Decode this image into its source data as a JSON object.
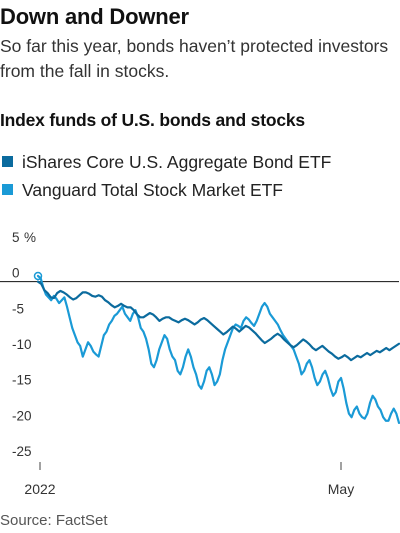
{
  "title": "Down and Downer",
  "subtitle": "So far this year, bonds haven’t protected investors from the fall in stocks.",
  "heading": "Index funds of U.S. bonds and stocks",
  "source": "Source: FactSet",
  "chart_data": {
    "type": "line",
    "title": "",
    "xlabel": "",
    "ylabel": "",
    "unit_label": "%",
    "x_tick_labels": [
      "2022",
      "May"
    ],
    "y_ticks": [
      5,
      0,
      -5,
      -10,
      -15,
      -20,
      -25
    ],
    "y_tick_labels": [
      "5",
      "0",
      "-5",
      "-10",
      "-15",
      "-20",
      "-25"
    ],
    "ylim": [
      -25,
      5
    ],
    "grid": false,
    "legend": "top-left",
    "colors": {
      "bond": "#0b6b9e",
      "stock": "#1a9ad6",
      "zero_line": "#111111"
    },
    "series": [
      {
        "name": "iShares Core U.S. Aggregate Bond ETF",
        "color": "#0b6b9e",
        "values": [
          0,
          -0.3,
          -1.2,
          -1.6,
          -2.2,
          -2.3,
          -1.6,
          -1.3,
          -1.5,
          -1.8,
          -2.2,
          -2.5,
          -2.3,
          -1.9,
          -1.5,
          -1.5,
          -1.7,
          -2.0,
          -2.1,
          -1.9,
          -2.1,
          -2.6,
          -2.9,
          -3.3,
          -3.6,
          -3.4,
          -3.1,
          -3.4,
          -3.6,
          -3.6,
          -4.0,
          -4.6,
          -5.0,
          -5.0,
          -4.7,
          -4.4,
          -4.6,
          -5.0,
          -5.5,
          -5.2,
          -5.0,
          -5.0,
          -5.3,
          -5.5,
          -5.7,
          -5.4,
          -5.2,
          -5.4,
          -5.7,
          -6.0,
          -5.7,
          -5.3,
          -5.1,
          -5.4,
          -5.8,
          -6.2,
          -6.6,
          -7.0,
          -7.4,
          -7.1,
          -6.7,
          -6.3,
          -6.6,
          -7.0,
          -6.6,
          -6.2,
          -6.4,
          -6.8,
          -7.2,
          -7.7,
          -8.2,
          -8.6,
          -8.3,
          -8.0,
          -7.6,
          -7.3,
          -7.6,
          -8.1,
          -8.5,
          -8.9,
          -9.2,
          -8.9,
          -8.5,
          -8.1,
          -8.4,
          -8.8,
          -9.3,
          -9.6,
          -9.3,
          -9.0,
          -9.4,
          -9.8,
          -10.1,
          -10.5,
          -10.8,
          -10.6,
          -10.3,
          -10.6,
          -11.0,
          -10.7,
          -10.4,
          -10.6,
          -10.3,
          -10.0,
          -10.3,
          -10.0,
          -9.7,
          -9.9,
          -9.6,
          -9.3,
          -9.6,
          -9.3,
          -9.0,
          -8.7
        ]
      },
      {
        "name": "Vanguard Total Stock Market ETF",
        "color": "#1a9ad6",
        "values": [
          0.8,
          0.5,
          -0.8,
          -1.8,
          -2.2,
          -2.6,
          -2.0,
          -2.4,
          -3.0,
          -2.6,
          -2.2,
          -3.5,
          -5.0,
          -6.5,
          -7.5,
          -8.5,
          -9.0,
          -10.5,
          -9.5,
          -8.5,
          -9.0,
          -9.8,
          -10.2,
          -10.5,
          -9.0,
          -7.5,
          -7.0,
          -6.0,
          -5.5,
          -4.8,
          -4.5,
          -4.0,
          -3.5,
          -4.5,
          -5.0,
          -5.5,
          -4.5,
          -4.0,
          -5.0,
          -6.5,
          -7.0,
          -8.0,
          -9.5,
          -11.5,
          -12.0,
          -11.0,
          -9.5,
          -8.5,
          -7.5,
          -8.0,
          -9.5,
          -10.5,
          -11.0,
          -12.5,
          -13.0,
          -12.0,
          -10.5,
          -9.5,
          -10.5,
          -12.0,
          -13.0,
          -14.5,
          -15.0,
          -14.0,
          -12.5,
          -12.0,
          -13.0,
          -14.5,
          -14.0,
          -13.0,
          -11.0,
          -9.5,
          -8.5,
          -7.5,
          -6.5,
          -6.0,
          -6.2,
          -6.5,
          -5.5,
          -5.0,
          -5.3,
          -5.8,
          -6.2,
          -5.5,
          -4.5,
          -3.5,
          -3.0,
          -3.5,
          -4.5,
          -5.0,
          -5.5,
          -6.0,
          -6.8,
          -7.5,
          -8.0,
          -8.5,
          -9.0,
          -9.5,
          -10.5,
          -11.5,
          -13.0,
          -12.5,
          -11.5,
          -11.0,
          -12.0,
          -13.5,
          -14.5,
          -14.0,
          -13.0,
          -12.5,
          -13.5,
          -15.0,
          -16.0,
          -15.5,
          -14.0,
          -13.5,
          -15.0,
          -17.0,
          -18.5,
          -19.0,
          -18.0,
          -17.5,
          -18.5,
          -19.0,
          -19.2,
          -18.5,
          -17.0,
          -16.0,
          -16.5,
          -17.5,
          -18.0,
          -19.0,
          -19.5,
          -19.5,
          -18.5,
          -17.8,
          -18.5,
          -19.8
        ]
      }
    ]
  }
}
